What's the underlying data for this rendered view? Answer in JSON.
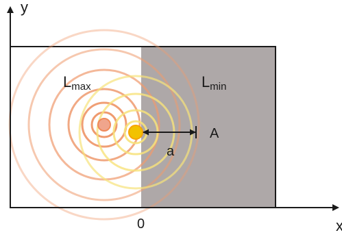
{
  "axes": {
    "x_label": "x",
    "y_label": "y",
    "origin_label": "0"
  },
  "regions": {
    "left_label_main": "L",
    "left_label_sub": "max",
    "right_label_main": "L",
    "right_label_sub": "min",
    "right_fill": "#aea8a8"
  },
  "markers": {
    "point_label": "A",
    "distance_label": "a"
  },
  "colors": {
    "source_real": "#f2c200",
    "source_image": "#f0a58c",
    "rings_real": "#f7e27a",
    "rings_image": "#ef9a6e",
    "axis": "#1a1a1a"
  }
}
